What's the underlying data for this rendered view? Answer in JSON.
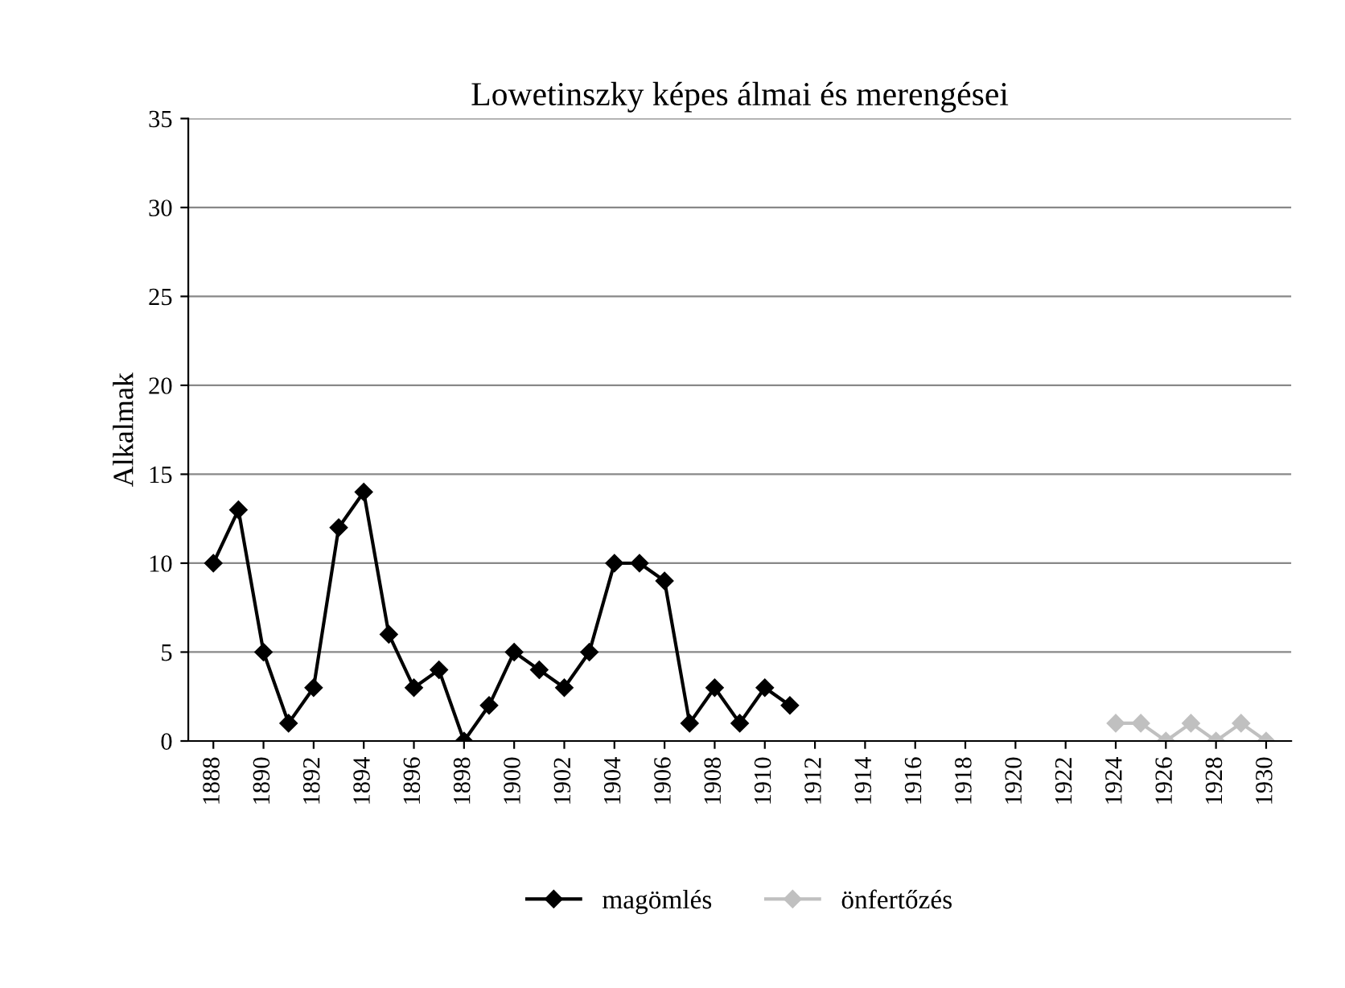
{
  "chart_data": {
    "type": "line",
    "title": "Lowetinszky képes álmai és merengései",
    "ylabel": "Alkalmak",
    "x": [
      1888,
      1889,
      1890,
      1891,
      1892,
      1893,
      1894,
      1895,
      1896,
      1897,
      1898,
      1899,
      1900,
      1901,
      1902,
      1903,
      1904,
      1905,
      1906,
      1907,
      1908,
      1909,
      1910,
      1911
    ],
    "series": [
      {
        "name": "magömlés",
        "color": "#000000",
        "values": [
          10,
          13,
          5,
          1,
          3,
          12,
          14,
          6,
          3,
          4,
          0,
          2,
          5,
          4,
          3,
          5,
          10,
          10,
          9,
          1,
          3,
          1,
          3,
          2
        ]
      },
      {
        "name": "önfertőzés",
        "color": "#c0c0c0",
        "x": [
          1924,
          1925,
          1926,
          1927,
          1928,
          1929,
          1930
        ],
        "values": [
          1,
          1,
          0,
          1,
          0,
          1,
          0
        ]
      }
    ],
    "xlim": [
      1887,
      1931
    ],
    "xticks": [
      1888,
      1890,
      1892,
      1894,
      1896,
      1898,
      1900,
      1902,
      1904,
      1906,
      1908,
      1910,
      1912,
      1914,
      1916,
      1918,
      1920,
      1922,
      1924,
      1926,
      1928,
      1930
    ],
    "ylim": [
      0,
      35
    ],
    "yticks": [
      0,
      5,
      10,
      15,
      20,
      25,
      30,
      35
    ],
    "grid": "y",
    "legend": "bottom",
    "marker": "diamond",
    "line_style": "solid"
  }
}
